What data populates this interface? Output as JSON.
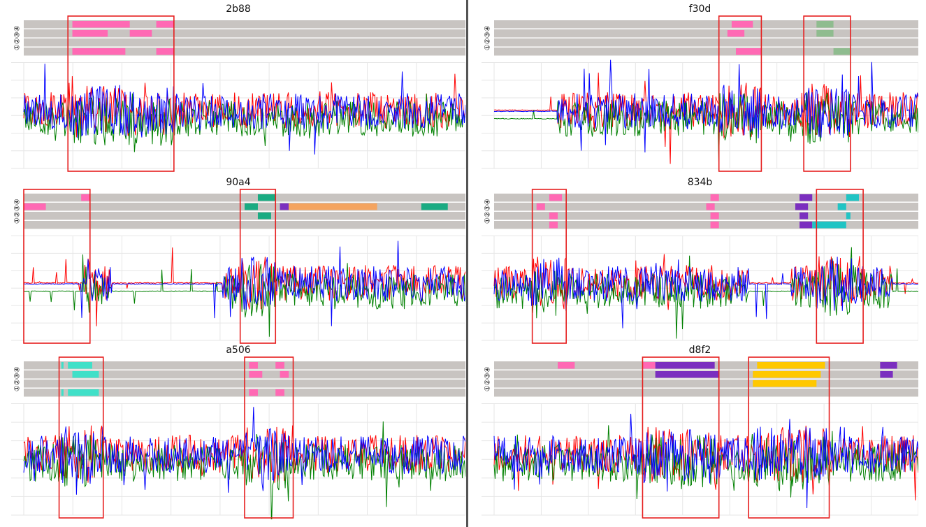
{
  "row_labels": [
    "①",
    "②",
    "③",
    "④"
  ],
  "colors": {
    "series_red": "#ff0000",
    "series_green": "#008000",
    "series_blue": "#0000ff",
    "lane_bg": "#c8c4c1",
    "grid": "#e6e6e6",
    "highlight_box": "#e61e1e",
    "divider": "#555555"
  },
  "chart_data": [
    {
      "type": "line",
      "title": "2b88",
      "series": [
        {
          "color": "#ff0000"
        },
        {
          "color": "#008000"
        },
        {
          "color": "#0000ff"
        }
      ],
      "grid": true,
      "highlight_windows": [
        [
          0.1,
          0.34
        ]
      ],
      "annotation_bars": [
        {
          "lane": 1,
          "start": 0.11,
          "end": 0.24,
          "color": "#ff69b4"
        },
        {
          "lane": 1,
          "start": 0.3,
          "end": 0.34,
          "color": "#ff69b4"
        },
        {
          "lane": 2,
          "start": 0.11,
          "end": 0.19,
          "color": "#ff69b4"
        },
        {
          "lane": 2,
          "start": 0.24,
          "end": 0.29,
          "color": "#ff69b4"
        },
        {
          "lane": 4,
          "start": 0.11,
          "end": 0.23,
          "color": "#ff69b4"
        },
        {
          "lane": 4,
          "start": 0.3,
          "end": 0.34,
          "color": "#ff69b4"
        }
      ]
    },
    {
      "type": "line",
      "title": "f30d",
      "series": [
        {
          "color": "#ff0000"
        },
        {
          "color": "#008000"
        },
        {
          "color": "#0000ff"
        }
      ],
      "grid": true,
      "highlight_windows": [
        [
          0.53,
          0.63
        ],
        [
          0.73,
          0.84
        ]
      ],
      "annotation_bars": [
        {
          "lane": 1,
          "start": 0.56,
          "end": 0.61,
          "color": "#ff69b4"
        },
        {
          "lane": 1,
          "start": 0.76,
          "end": 0.8,
          "color": "#8fbc8f"
        },
        {
          "lane": 2,
          "start": 0.55,
          "end": 0.59,
          "color": "#ff69b4"
        },
        {
          "lane": 2,
          "start": 0.76,
          "end": 0.8,
          "color": "#8fbc8f"
        },
        {
          "lane": 4,
          "start": 0.57,
          "end": 0.63,
          "color": "#ff69b4"
        },
        {
          "lane": 4,
          "start": 0.8,
          "end": 0.84,
          "color": "#8fbc8f"
        }
      ]
    },
    {
      "type": "line",
      "title": "90a4",
      "series": [
        {
          "color": "#ff0000"
        },
        {
          "color": "#008000"
        },
        {
          "color": "#0000ff"
        }
      ],
      "grid": true,
      "highlight_windows": [
        [
          0.0,
          0.15
        ],
        [
          0.49,
          0.57
        ]
      ],
      "annotation_bars": [
        {
          "lane": 1,
          "start": 0.13,
          "end": 0.15,
          "color": "#ff69b4"
        },
        {
          "lane": 1,
          "start": 0.53,
          "end": 0.57,
          "color": "#1aab82"
        },
        {
          "lane": 2,
          "start": 0.0,
          "end": 0.05,
          "color": "#ff69b4"
        },
        {
          "lane": 2,
          "start": 0.5,
          "end": 0.53,
          "color": "#1aab82"
        },
        {
          "lane": 2,
          "start": 0.58,
          "end": 0.6,
          "color": "#7b2fbf"
        },
        {
          "lane": 2,
          "start": 0.6,
          "end": 0.8,
          "color": "#f4a460"
        },
        {
          "lane": 2,
          "start": 0.9,
          "end": 0.96,
          "color": "#1aab82"
        },
        {
          "lane": 3,
          "start": 0.53,
          "end": 0.56,
          "color": "#1aab82"
        }
      ]
    },
    {
      "type": "line",
      "title": "834b",
      "series": [
        {
          "color": "#ff0000"
        },
        {
          "color": "#008000"
        },
        {
          "color": "#0000ff"
        }
      ],
      "grid": true,
      "highlight_windows": [
        [
          0.09,
          0.17
        ],
        [
          0.76,
          0.87
        ]
      ],
      "annotation_bars": [
        {
          "lane": 1,
          "start": 0.13,
          "end": 0.16,
          "color": "#ff69b4"
        },
        {
          "lane": 1,
          "start": 0.51,
          "end": 0.53,
          "color": "#ff69b4"
        },
        {
          "lane": 1,
          "start": 0.72,
          "end": 0.75,
          "color": "#7b2fbf"
        },
        {
          "lane": 1,
          "start": 0.83,
          "end": 0.86,
          "color": "#20c4c4"
        },
        {
          "lane": 2,
          "start": 0.1,
          "end": 0.12,
          "color": "#ff69b4"
        },
        {
          "lane": 2,
          "start": 0.5,
          "end": 0.52,
          "color": "#ff69b4"
        },
        {
          "lane": 2,
          "start": 0.71,
          "end": 0.74,
          "color": "#7b2fbf"
        },
        {
          "lane": 2,
          "start": 0.81,
          "end": 0.83,
          "color": "#20c4c4"
        },
        {
          "lane": 3,
          "start": 0.13,
          "end": 0.15,
          "color": "#ff69b4"
        },
        {
          "lane": 3,
          "start": 0.51,
          "end": 0.53,
          "color": "#ff69b4"
        },
        {
          "lane": 3,
          "start": 0.72,
          "end": 0.74,
          "color": "#7b2fbf"
        },
        {
          "lane": 3,
          "start": 0.83,
          "end": 0.84,
          "color": "#20c4c4"
        },
        {
          "lane": 4,
          "start": 0.13,
          "end": 0.15,
          "color": "#ff69b4"
        },
        {
          "lane": 4,
          "start": 0.51,
          "end": 0.53,
          "color": "#ff69b4"
        },
        {
          "lane": 4,
          "start": 0.72,
          "end": 0.75,
          "color": "#7b2fbf"
        },
        {
          "lane": 4,
          "start": 0.75,
          "end": 0.83,
          "color": "#20c4c4"
        }
      ]
    },
    {
      "type": "line",
      "title": "a506",
      "series": [
        {
          "color": "#ff0000"
        },
        {
          "color": "#008000"
        },
        {
          "color": "#0000ff"
        }
      ],
      "grid": true,
      "highlight_windows": [
        [
          0.08,
          0.18
        ],
        [
          0.5,
          0.61
        ]
      ],
      "annotation_bars": [
        {
          "lane": 1,
          "start": 0.085,
          "end": 0.09,
          "color": "#40e0c8"
        },
        {
          "lane": 1,
          "start": 0.1,
          "end": 0.155,
          "color": "#40e0c8"
        },
        {
          "lane": 1,
          "start": 0.51,
          "end": 0.53,
          "color": "#ff69b4"
        },
        {
          "lane": 1,
          "start": 0.57,
          "end": 0.59,
          "color": "#ff69b4"
        },
        {
          "lane": 2,
          "start": 0.11,
          "end": 0.17,
          "color": "#40e0c8"
        },
        {
          "lane": 2,
          "start": 0.51,
          "end": 0.54,
          "color": "#ff69b4"
        },
        {
          "lane": 2,
          "start": 0.58,
          "end": 0.6,
          "color": "#ff69b4"
        },
        {
          "lane": 4,
          "start": 0.085,
          "end": 0.09,
          "color": "#40e0c8"
        },
        {
          "lane": 4,
          "start": 0.1,
          "end": 0.17,
          "color": "#40e0c8"
        },
        {
          "lane": 4,
          "start": 0.51,
          "end": 0.53,
          "color": "#ff69b4"
        },
        {
          "lane": 4,
          "start": 0.57,
          "end": 0.59,
          "color": "#ff69b4"
        }
      ]
    },
    {
      "type": "line",
      "title": "d8f2",
      "series": [
        {
          "color": "#ff0000"
        },
        {
          "color": "#008000"
        },
        {
          "color": "#0000ff"
        }
      ],
      "grid": true,
      "highlight_windows": [
        [
          0.35,
          0.53
        ],
        [
          0.6,
          0.79
        ]
      ],
      "annotation_bars": [
        {
          "lane": 1,
          "start": 0.15,
          "end": 0.19,
          "color": "#ff69b4"
        },
        {
          "lane": 1,
          "start": 0.35,
          "end": 0.38,
          "color": "#ff69b4"
        },
        {
          "lane": 1,
          "start": 0.38,
          "end": 0.52,
          "color": "#7b2fbf"
        },
        {
          "lane": 1,
          "start": 0.62,
          "end": 0.78,
          "color": "#ffc800"
        },
        {
          "lane": 1,
          "start": 0.91,
          "end": 0.95,
          "color": "#7b2fbf"
        },
        {
          "lane": 2,
          "start": 0.38,
          "end": 0.53,
          "color": "#7b2fbf"
        },
        {
          "lane": 2,
          "start": 0.61,
          "end": 0.77,
          "color": "#ffc800"
        },
        {
          "lane": 2,
          "start": 0.91,
          "end": 0.94,
          "color": "#7b2fbf"
        },
        {
          "lane": 3,
          "start": 0.61,
          "end": 0.76,
          "color": "#ffc800"
        }
      ]
    }
  ]
}
